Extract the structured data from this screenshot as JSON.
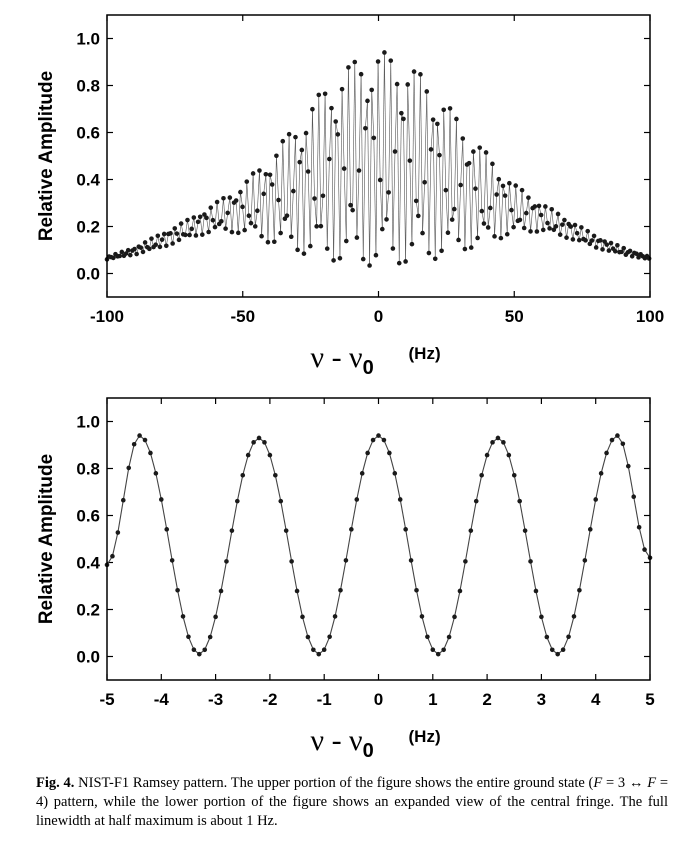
{
  "chart_data": [
    {
      "type": "scatter",
      "title": "",
      "ylabel": "Relative Amplitude",
      "xlabel": "ν − ν0",
      "xlabel_symbol": "ν - ν",
      "xlabel_subscript": "0",
      "xlabel_unit": "(Hz)",
      "xlim": [
        -100,
        100
      ],
      "ylim": [
        -0.1,
        1.1
      ],
      "x_ticks": [
        -100,
        -50,
        0,
        50,
        100
      ],
      "x_tick_labels": [
        "-100",
        "-50",
        "0",
        "50",
        "100"
      ],
      "y_ticks": [
        0.0,
        0.2,
        0.4,
        0.6,
        0.8,
        1.0
      ],
      "y_tick_labels": [
        "0.0",
        "0.2",
        "0.4",
        "0.6",
        "0.8",
        "1.0"
      ],
      "grid": false,
      "fringe_period_hz": 2.2,
      "series": [
        {
          "style": "dense Ramsey fringes, dots joined by thin gray lines",
          "upper_envelope": {
            "x": [
              -100,
              -90,
              -80,
              -70,
              -60,
              -50,
              -40,
              -30,
              -20,
              -10,
              0,
              10,
              20,
              30,
              40,
              50,
              60,
              70,
              80,
              90,
              100
            ],
            "y": [
              0.07,
              0.11,
              0.17,
              0.23,
              0.3,
              0.38,
              0.5,
              0.64,
              0.79,
              0.9,
              0.95,
              0.91,
              0.8,
              0.65,
              0.51,
              0.38,
              0.3,
              0.23,
              0.16,
              0.11,
              0.07
            ]
          },
          "lower_envelope": {
            "x": [
              -100,
              -90,
              -80,
              -70,
              -60,
              -50,
              -40,
              -30,
              -20,
              -10,
              0,
              10,
              20,
              30,
              40,
              50,
              60,
              70,
              80,
              90,
              100
            ],
            "y": [
              0.06,
              0.08,
              0.11,
              0.15,
              0.18,
              0.17,
              0.13,
              0.09,
              0.06,
              0.04,
              0.03,
              0.04,
              0.06,
              0.09,
              0.13,
              0.17,
              0.18,
              0.15,
              0.11,
              0.08,
              0.06
            ]
          }
        }
      ]
    },
    {
      "type": "line",
      "title": "",
      "ylabel": "Relative Amplitude",
      "xlabel": "ν − ν0",
      "xlabel_symbol": "ν - ν",
      "xlabel_subscript": "0",
      "xlabel_unit": "(Hz)",
      "xlim": [
        -5,
        5
      ],
      "ylim": [
        -0.1,
        1.1
      ],
      "x_ticks": [
        -5,
        -4,
        -3,
        -2,
        -1,
        0,
        1,
        2,
        3,
        4,
        5
      ],
      "x_tick_labels": [
        "-5",
        "-4",
        "-3",
        "-2",
        "-1",
        "0",
        "1",
        "2",
        "3",
        "4",
        "5"
      ],
      "y_ticks": [
        0.0,
        0.2,
        0.4,
        0.6,
        0.8,
        1.0
      ],
      "y_tick_labels": [
        "0.0",
        "0.2",
        "0.4",
        "0.6",
        "0.8",
        "1.0"
      ],
      "grid": false,
      "series": [
        {
          "style": "markers joined by line",
          "x": [
            -5.0,
            -4.4,
            -3.3,
            -2.2,
            -1.1,
            0.0,
            1.1,
            2.2,
            3.3,
            4.4,
            5.0
          ],
          "y": [
            0.39,
            0.94,
            0.01,
            0.93,
            0.01,
            0.94,
            0.01,
            0.93,
            0.01,
            0.94,
            0.42
          ]
        }
      ]
    }
  ],
  "caption": {
    "fig_num": "Fig. 4.",
    "part1": " NIST-F1 Ramsey pattern. The upper portion of the figure shows the entire ground state (",
    "F_a": "F",
    "eq1": " = 3 ↔ ",
    "F_b": "F",
    "eq2": " = 4) pattern, while the lower portion of the figure shows an expanded view of the central fringe. The full linewidth at half maximum is about 1 Hz."
  }
}
